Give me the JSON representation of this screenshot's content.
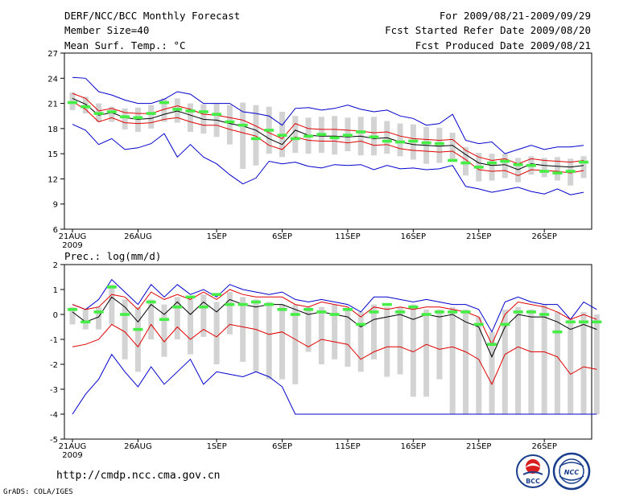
{
  "header": {
    "title": "DERF/NCC/BCC Monthly Forecast",
    "member": "Member Size=40",
    "variable": "Mean Surf. Temp.: °C",
    "period": "For 2009/08/21-2009/09/29",
    "start": "Fcst Started Refer Date 2009/08/20",
    "produced": "Fcst Produced Date 2009/08/21"
  },
  "footer": {
    "url": "http://cmdp.ncc.cma.gov.cn",
    "credit": "GrADS: COLA/IGES",
    "logo_left": "BCC",
    "logo_right": "NCC"
  },
  "colors": {
    "box": "#d3d3d3",
    "mean": "#000000",
    "spread": "#e00000",
    "envelope": "#0000cc",
    "median": "#44ee44"
  },
  "chart_data": [
    {
      "type": "box",
      "title": "Mean Surf. Temp.: °C",
      "xlim": [
        1,
        40
      ],
      "ylim": [
        6,
        27
      ],
      "yticks": [
        6,
        9,
        12,
        15,
        18,
        21,
        24,
        27
      ],
      "ytick_labels": [
        "6",
        "9",
        "12",
        "15",
        "18",
        "21",
        "24",
        "27"
      ],
      "x_ticks": [
        1,
        6,
        12,
        17,
        22,
        27,
        32,
        37
      ],
      "x_tick_labels": [
        "21AUG",
        "26AUG",
        "1SEP",
        "6SEP",
        "11SEP",
        "16SEP",
        "21SEP",
        "26SEP"
      ],
      "x_sub_label": "2009",
      "series": [
        {
          "name": "ensemble mean",
          "values": [
            21.6,
            20.9,
            19.6,
            19.9,
            19.3,
            19.1,
            19.2,
            19.7,
            20.1,
            19.6,
            19.1,
            19.0,
            18.6,
            18.3,
            17.8,
            16.8,
            16.1,
            17.8,
            17.2,
            17.1,
            17.1,
            17.0,
            17.1,
            16.8,
            16.9,
            16.4,
            16.1,
            16.0,
            15.9,
            16.0,
            14.9,
            13.9,
            13.6,
            13.7,
            13.1,
            13.8,
            13.6,
            13.5,
            13.4,
            13.6
          ]
        },
        {
          "name": "mean + 1 std",
          "values": [
            22.2,
            21.6,
            20.1,
            20.4,
            19.9,
            19.8,
            19.8,
            20.3,
            20.7,
            20.3,
            19.7,
            19.6,
            19.3,
            19.0,
            18.3,
            17.5,
            16.8,
            18.6,
            18.0,
            17.9,
            17.9,
            17.8,
            17.7,
            17.5,
            17.6,
            17.1,
            16.8,
            16.7,
            16.6,
            16.7,
            15.4,
            14.6,
            14.2,
            14.4,
            13.8,
            14.4,
            14.2,
            14.1,
            14.0,
            14.2
          ]
        },
        {
          "name": "mean - 1 std",
          "values": [
            21.2,
            20.3,
            18.8,
            19.3,
            18.7,
            18.6,
            18.7,
            19.1,
            19.3,
            18.8,
            18.4,
            18.4,
            17.9,
            17.5,
            17.1,
            16.0,
            15.5,
            17.0,
            16.6,
            16.5,
            16.5,
            16.3,
            16.5,
            16.0,
            16.1,
            15.6,
            15.4,
            15.3,
            15.2,
            15.3,
            14.3,
            13.1,
            12.9,
            13.0,
            12.4,
            13.1,
            13.0,
            12.9,
            12.7,
            13.0
          ]
        },
        {
          "name": "ensemble max",
          "values": [
            24.1,
            24.0,
            22.4,
            22.0,
            21.4,
            21.0,
            21.0,
            21.5,
            22.4,
            22.1,
            21.0,
            21.0,
            21.0,
            20.0,
            19.8,
            19.5,
            18.4,
            20.4,
            20.5,
            20.2,
            20.4,
            20.8,
            20.3,
            20.0,
            20.2,
            19.5,
            19.2,
            18.4,
            18.6,
            19.7,
            16.6,
            16.2,
            16.4,
            15.0,
            15.5,
            16.0,
            15.5,
            15.8,
            15.8,
            16.0
          ]
        },
        {
          "name": "ensemble min",
          "values": [
            18.5,
            17.8,
            16.1,
            16.8,
            15.5,
            15.7,
            16.2,
            17.4,
            14.6,
            16.1,
            14.6,
            13.8,
            12.5,
            11.4,
            12.1,
            14.1,
            13.8,
            14.0,
            13.5,
            13.3,
            13.7,
            13.6,
            13.7,
            13.1,
            13.6,
            13.2,
            13.3,
            13.1,
            13.2,
            13.6,
            11.1,
            10.8,
            10.4,
            10.7,
            11.0,
            10.5,
            10.2,
            10.8,
            10.1,
            10.4
          ]
        },
        {
          "name": "median",
          "values": [
            21.1,
            20.6,
            19.8,
            20.0,
            19.4,
            19.3,
            19.8,
            21.1,
            20.3,
            20.1,
            20.0,
            19.7,
            18.8,
            18.4,
            16.8,
            17.8,
            17.2,
            16.8,
            17.1,
            17.3,
            16.9,
            17.2,
            17.6,
            17.0,
            16.5,
            16.4,
            16.5,
            16.3,
            16.2,
            14.2,
            13.9,
            13.4,
            13.9,
            14.1,
            13.7,
            13.6,
            12.9,
            12.7,
            12.9,
            14.0
          ]
        },
        {
          "name": "box top",
          "values": [
            22.3,
            21.8,
            21.0,
            20.6,
            20.4,
            20.5,
            20.8,
            21.6,
            21.6,
            21.0,
            20.9,
            21.0,
            20.8,
            21.1,
            20.8,
            20.6,
            20.0,
            19.5,
            19.3,
            19.4,
            19.5,
            19.3,
            19.4,
            19.4,
            18.9,
            18.6,
            18.5,
            18.2,
            18.1,
            17.5,
            15.8,
            15.1,
            15.0,
            15.0,
            14.5,
            14.7,
            14.5,
            14.6,
            14.4,
            14.7
          ]
        },
        {
          "name": "box bottom",
          "values": [
            20.2,
            19.8,
            18.8,
            18.8,
            17.9,
            17.6,
            18.0,
            18.8,
            18.7,
            17.6,
            17.4,
            17.0,
            16.1,
            13.2,
            13.6,
            15.0,
            14.6,
            15.1,
            15.0,
            15.1,
            14.9,
            15.3,
            14.8,
            14.8,
            15.0,
            14.7,
            14.3,
            13.8,
            13.9,
            14.3,
            12.4,
            11.7,
            11.8,
            12.1,
            11.6,
            12.5,
            12.2,
            11.8,
            11.2,
            12.1
          ]
        }
      ]
    },
    {
      "type": "box",
      "title": "Prec.: log(mm/d)",
      "xlim": [
        1,
        40
      ],
      "ylim": [
        -5,
        2
      ],
      "yticks": [
        -5,
        -4,
        -3,
        -2,
        -1,
        0,
        1,
        2
      ],
      "ytick_labels": [
        "-5",
        "-4",
        "-3",
        "-2",
        "-1",
        "0",
        "1",
        "2"
      ],
      "x_ticks": [
        1,
        6,
        12,
        17,
        22,
        27,
        32,
        37
      ],
      "x_tick_labels": [
        "21AUG",
        "26AUG",
        "1SEP",
        "6SEP",
        "11SEP",
        "16SEP",
        "21SEP",
        "26SEP"
      ],
      "x_sub_label": "2009",
      "series": [
        {
          "name": "ensemble mean",
          "values": [
            0.1,
            -0.3,
            -0.1,
            0.7,
            0.3,
            -0.3,
            0.4,
            0.0,
            0.5,
            0.0,
            0.5,
            0.1,
            0.6,
            0.4,
            0.3,
            0.4,
            0.4,
            0.2,
            0.0,
            0.1,
            0.0,
            -0.1,
            -0.5,
            -0.2,
            -0.1,
            0.0,
            -0.2,
            0.0,
            -0.1,
            0.0,
            -0.3,
            -0.5,
            -1.7,
            -0.5,
            0.0,
            -0.1,
            -0.1,
            -0.3,
            -0.6,
            -0.4,
            -0.6
          ]
        },
        {
          "name": "mean + 1 std",
          "values": [
            0.4,
            0.2,
            0.3,
            0.8,
            0.7,
            0.2,
            0.9,
            0.6,
            0.8,
            0.6,
            0.9,
            0.6,
            1.0,
            0.8,
            0.7,
            0.7,
            0.7,
            0.4,
            0.3,
            0.5,
            0.4,
            0.3,
            -0.1,
            0.3,
            0.2,
            0.3,
            0.2,
            0.3,
            0.3,
            0.2,
            0.1,
            -0.1,
            -1.2,
            0.0,
            0.5,
            0.4,
            0.3,
            0.1,
            -0.2,
            0.0,
            -0.2
          ]
        },
        {
          "name": "mean - 1 std",
          "values": [
            -1.3,
            -1.2,
            -1.0,
            -0.4,
            -0.7,
            -1.3,
            -0.4,
            -1.1,
            -0.5,
            -1.0,
            -0.6,
            -0.9,
            -0.4,
            -0.5,
            -0.6,
            -0.8,
            -0.7,
            -1.0,
            -1.3,
            -1.0,
            -1.1,
            -1.2,
            -1.8,
            -1.5,
            -1.3,
            -1.3,
            -1.5,
            -1.2,
            -1.4,
            -1.3,
            -1.5,
            -1.8,
            -2.8,
            -1.6,
            -1.3,
            -1.5,
            -1.5,
            -1.7,
            -2.4,
            -2.1,
            -2.2
          ]
        },
        {
          "name": "ensemble max",
          "values": [
            0.4,
            0.2,
            0.6,
            1.4,
            0.9,
            0.4,
            1.2,
            0.7,
            1.2,
            0.8,
            1.0,
            0.7,
            1.2,
            1.0,
            0.9,
            0.8,
            0.9,
            0.6,
            0.5,
            0.6,
            0.5,
            0.4,
            0.1,
            0.7,
            0.7,
            0.6,
            0.5,
            0.6,
            0.5,
            0.4,
            0.4,
            0.2,
            -0.7,
            0.5,
            0.7,
            0.5,
            0.4,
            0.4,
            -0.2,
            0.5,
            0.2
          ]
        },
        {
          "name": "ensemble min",
          "values": [
            -4.0,
            -3.2,
            -2.6,
            -1.6,
            -2.3,
            -2.9,
            -2.1,
            -2.8,
            -2.3,
            -1.8,
            -2.8,
            -2.3,
            -2.4,
            -2.5,
            -2.3,
            -2.5,
            -2.9,
            -4.0,
            -4.0,
            -4.0,
            -4.0,
            -4.0,
            -4.0,
            -4.0,
            -4.0,
            -4.0,
            -4.0,
            -4.0,
            -4.0,
            -4.0,
            -4.0,
            -4.0,
            -4.0,
            -4.0,
            -4.0,
            -4.0,
            -4.0,
            -4.0,
            -4.0,
            -4.0,
            -4.0
          ]
        },
        {
          "name": "median",
          "values": [
            0.2,
            -0.3,
            0.1,
            1.1,
            0.0,
            -0.6,
            0.5,
            -0.2,
            0.3,
            0.7,
            0.3,
            0.8,
            0.4,
            0.4,
            0.5,
            0.4,
            0.2,
            0.0,
            0.2,
            0.1,
            0.0,
            0.2,
            -0.4,
            0.1,
            0.4,
            0.1,
            0.3,
            0.0,
            0.1,
            0.1,
            0.1,
            -0.4,
            -1.2,
            -0.4,
            0.1,
            0.1,
            0.0,
            -0.7,
            -0.3,
            -0.3,
            -0.3
          ]
        },
        {
          "name": "box top",
          "values": [
            0.3,
            0.2,
            0.3,
            1.2,
            0.6,
            0.3,
            0.6,
            0.4,
            0.7,
            0.6,
            0.8,
            0.5,
            0.9,
            0.7,
            0.6,
            0.5,
            0.4,
            0.4,
            0.3,
            0.3,
            0.4,
            0.2,
            0.1,
            0.4,
            0.3,
            0.3,
            0.4,
            0.2,
            0.2,
            0.3,
            0.2,
            -0.1,
            -0.7,
            0.2,
            0.3,
            0.2,
            0.4,
            0.1,
            -0.2,
            0.1,
            0.0
          ]
        },
        {
          "name": "box bottom",
          "values": [
            -0.4,
            -0.6,
            -0.6,
            -0.4,
            -1.8,
            -2.3,
            -1.0,
            -1.7,
            -1.0,
            -1.6,
            -0.9,
            -2.0,
            -0.8,
            -1.9,
            -2.3,
            -2.6,
            -2.6,
            -2.8,
            -1.5,
            -2.0,
            -1.8,
            -2.1,
            -2.3,
            -1.8,
            -2.5,
            -2.4,
            -3.3,
            -3.3,
            -2.6,
            -4.0,
            -4.0,
            -4.0,
            -4.0,
            -4.0,
            -4.0,
            -4.0,
            -4.0,
            -4.0,
            -4.0,
            -4.0,
            -4.0
          ]
        }
      ]
    }
  ]
}
